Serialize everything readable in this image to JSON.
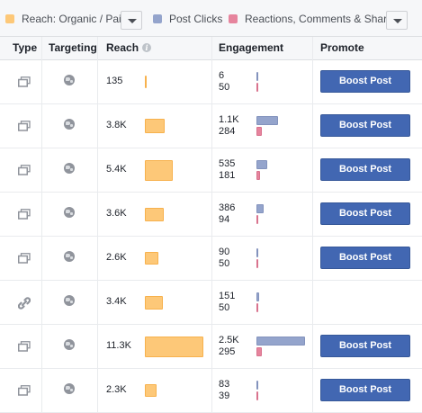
{
  "legend": {
    "reach_label": "Reach: Organic / Paid",
    "clicks_label": "Post Clicks",
    "reactions_label": "Reactions, Comments & Shares",
    "colors": {
      "reach": "#fdc878",
      "clicks": "#94a4cc",
      "reactions": "#e6849d"
    }
  },
  "header": {
    "type": "Type",
    "targeting": "Targeting",
    "reach": "Reach",
    "engagement": "Engagement",
    "promote": "Promote"
  },
  "boost_label": "Boost Post",
  "rows": [
    {
      "type_icon": "album-icon",
      "targeting_icon": "globe-icon",
      "reach": "135",
      "reach_value": 135,
      "clicks": "6",
      "clicks_value": 6,
      "reactions": "50",
      "reactions_value": 50,
      "promote": true
    },
    {
      "type_icon": "album-icon",
      "targeting_icon": "globe-icon",
      "reach": "3.8K",
      "reach_value": 3800,
      "clicks": "1.1K",
      "clicks_value": 1100,
      "reactions": "284",
      "reactions_value": 284,
      "promote": true
    },
    {
      "type_icon": "album-icon",
      "targeting_icon": "globe-icon",
      "reach": "5.4K",
      "reach_value": 5400,
      "clicks": "535",
      "clicks_value": 535,
      "reactions": "181",
      "reactions_value": 181,
      "promote": true
    },
    {
      "type_icon": "album-icon",
      "targeting_icon": "globe-icon",
      "reach": "3.6K",
      "reach_value": 3600,
      "clicks": "386",
      "clicks_value": 386,
      "reactions": "94",
      "reactions_value": 94,
      "promote": true
    },
    {
      "type_icon": "album-icon",
      "targeting_icon": "globe-icon",
      "reach": "2.6K",
      "reach_value": 2600,
      "clicks": "90",
      "clicks_value": 90,
      "reactions": "50",
      "reactions_value": 50,
      "promote": true
    },
    {
      "type_icon": "link-icon",
      "targeting_icon": "globe-icon",
      "reach": "3.4K",
      "reach_value": 3400,
      "clicks": "151",
      "clicks_value": 151,
      "reactions": "50",
      "reactions_value": 50,
      "promote": false
    },
    {
      "type_icon": "album-icon",
      "targeting_icon": "globe-icon",
      "reach": "11.3K",
      "reach_value": 11300,
      "clicks": "2.5K",
      "clicks_value": 2500,
      "reactions": "295",
      "reactions_value": 295,
      "promote": true
    },
    {
      "type_icon": "album-icon",
      "targeting_icon": "globe-icon",
      "reach": "2.3K",
      "reach_value": 2300,
      "clicks": "83",
      "clicks_value": 83,
      "reactions": "39",
      "reactions_value": 39,
      "promote": true
    }
  ]
}
